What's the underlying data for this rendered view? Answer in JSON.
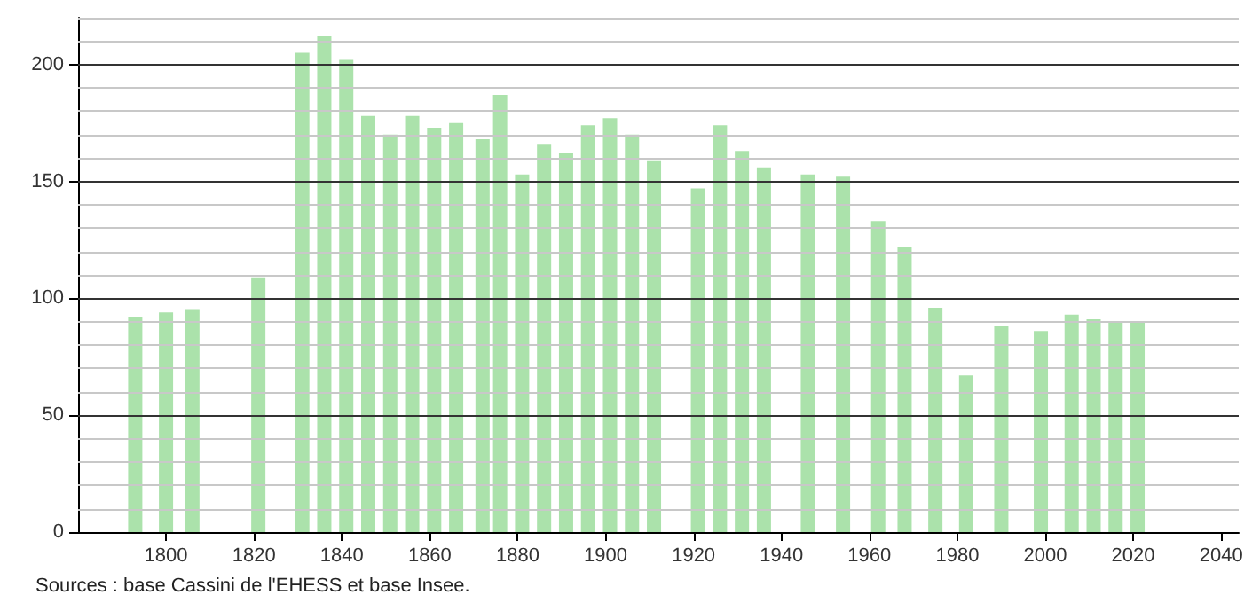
{
  "chart_data": {
    "type": "bar",
    "x": [
      1793,
      1800,
      1806,
      1821,
      1831,
      1836,
      1841,
      1846,
      1851,
      1856,
      1861,
      1866,
      1872,
      1876,
      1881,
      1886,
      1891,
      1896,
      1901,
      1906,
      1911,
      1921,
      1926,
      1931,
      1936,
      1946,
      1954,
      1962,
      1968,
      1975,
      1982,
      1990,
      1999,
      2006,
      2011,
      2016,
      2021
    ],
    "values": [
      92,
      94,
      95,
      109,
      205,
      212,
      202,
      178,
      170,
      178,
      173,
      175,
      168,
      187,
      153,
      166,
      162,
      174,
      177,
      170,
      159,
      147,
      174,
      163,
      156,
      153,
      152,
      133,
      122,
      96,
      67,
      88,
      86,
      93,
      91,
      90,
      90
    ],
    "color": "#abe2ab",
    "xlim": [
      1780,
      2044
    ],
    "xticks": [
      1800,
      1820,
      1840,
      1860,
      1880,
      1900,
      1920,
      1940,
      1960,
      1980,
      2000,
      2020,
      2040
    ],
    "ylim": [
      0,
      220
    ],
    "yticks": [
      0,
      50,
      100,
      150,
      200
    ],
    "grid": "y",
    "annotations": [
      "Sources : base Cassini de l'EHESS et base Insee."
    ]
  }
}
